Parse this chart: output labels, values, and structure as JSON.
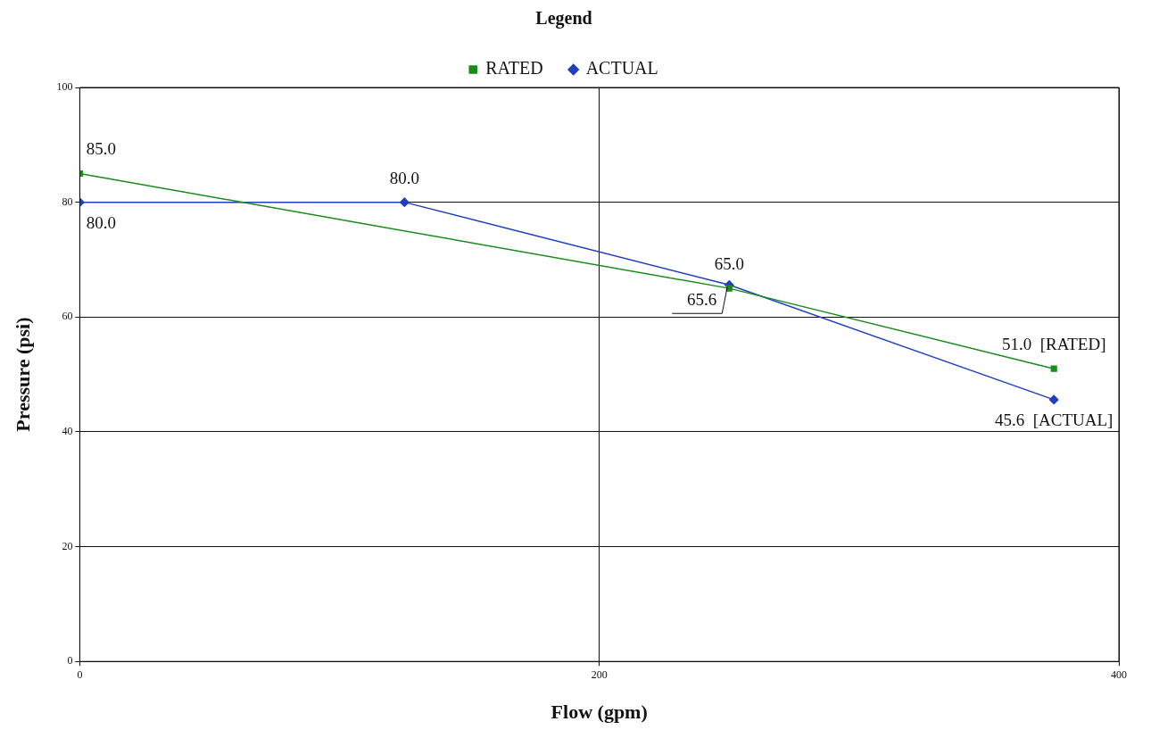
{
  "chart_data": {
    "type": "line",
    "xlabel": "Flow (gpm)",
    "ylabel": "Pressure (psi)",
    "legend_title": "Legend",
    "legend": "top",
    "xlim": [
      0,
      400
    ],
    "xticks": [
      0,
      200,
      400
    ],
    "ylim": [
      0,
      100
    ],
    "yticks": [
      0,
      20,
      40,
      60,
      80,
      100
    ],
    "grid": true,
    "series": [
      {
        "name": "RATED",
        "color": "#1a8c1a",
        "marker": "square",
        "x": [
          0,
          250,
          375
        ],
        "values": [
          85.0,
          65.0,
          51.0
        ],
        "value_labels": [
          "85.0",
          "65.0",
          "51.0  [RATED]"
        ]
      },
      {
        "name": "ACTUAL",
        "color": "#1f3fbf",
        "marker": "diamond",
        "x": [
          0,
          125,
          250,
          375
        ],
        "values": [
          80.0,
          80.0,
          65.6,
          45.6
        ],
        "value_labels": [
          "80.0",
          "80.0",
          "65.6",
          "45.6  [ACTUAL]"
        ]
      }
    ]
  }
}
